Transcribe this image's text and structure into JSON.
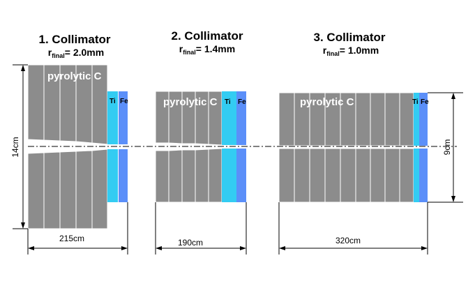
{
  "collimators": [
    {
      "title": "1. Collimator",
      "r_main": "r",
      "r_sub": "final",
      "r_value": "= 2.0mm",
      "material_main": "pyrolytic C",
      "material_ti": "Ti",
      "material_fe": "Fe",
      "length_label": "215cm"
    },
    {
      "title": "2. Collimator",
      "r_main": "r",
      "r_sub": "final",
      "r_value": "= 1.4mm",
      "material_main": "pyrolytic C",
      "material_ti": "Ti",
      "material_fe": "Fe",
      "length_label": "190cm"
    },
    {
      "title": "3. Collimator",
      "r_main": "r",
      "r_sub": "final",
      "r_value": "= 1.0mm",
      "material_main": "pyrolytic C",
      "material_ti": "Ti",
      "material_fe": "Fe",
      "length_label": "320cm"
    }
  ],
  "height_label_left": "14cm",
  "height_label_right": "9cm",
  "colors": {
    "graphite": "#8c8c8c",
    "titanium": "#33ccf2",
    "iron": "#5b8ff9"
  }
}
